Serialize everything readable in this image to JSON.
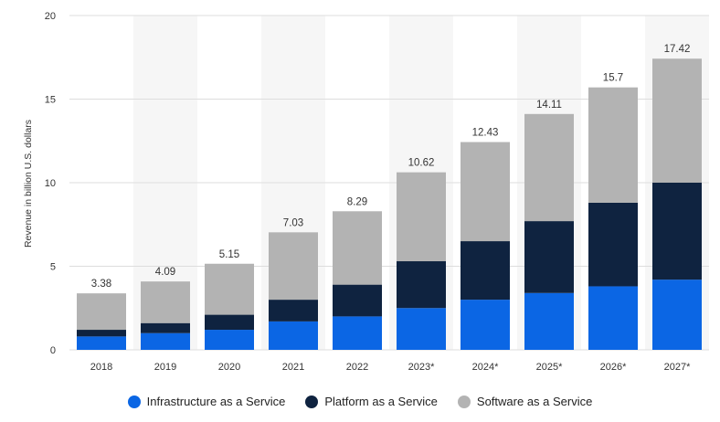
{
  "chart_data": {
    "type": "bar",
    "stacked": true,
    "categories": [
      "2018",
      "2019",
      "2020",
      "2021",
      "2022",
      "2023*",
      "2024*",
      "2025*",
      "2026*",
      "2027*"
    ],
    "series": [
      {
        "name": "Infrastructure as a Service",
        "color": "#0b66e4",
        "values": [
          0.8,
          1.0,
          1.2,
          1.7,
          2.0,
          2.5,
          3.0,
          3.4,
          3.8,
          4.2
        ]
      },
      {
        "name": "Platform as a Service",
        "color": "#0f2340",
        "values": [
          0.4,
          0.6,
          0.9,
          1.3,
          1.9,
          2.8,
          3.5,
          4.3,
          5.0,
          5.8
        ]
      },
      {
        "name": "Software as a Service",
        "color": "#b3b3b3",
        "values": [
          2.18,
          2.49,
          3.05,
          4.03,
          4.39,
          5.32,
          5.93,
          6.41,
          6.9,
          7.42
        ]
      }
    ],
    "totals": [
      "3.38",
      "4.09",
      "5.15",
      "7.03",
      "8.29",
      "10.62",
      "12.43",
      "14.11",
      "15.7",
      "17.42"
    ],
    "ylabel": "Revenue in billion U.S. dollars",
    "xlabel": "",
    "ylim": [
      0,
      20
    ],
    "yticks": [
      "0",
      "5",
      "10",
      "15",
      "20"
    ],
    "grid": true,
    "legend_position": "bottom"
  }
}
